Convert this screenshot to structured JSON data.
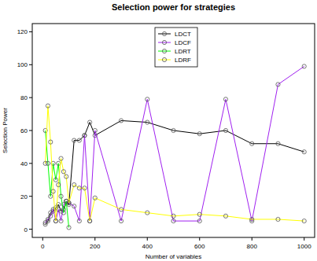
{
  "chart_data": {
    "type": "line",
    "title": "Selection power for strategies",
    "x_label": "Number of  variables",
    "y_label": "Selection Power",
    "xlim": [
      -40,
      1040
    ],
    "xticks": [
      0,
      200,
      400,
      600,
      800,
      1000
    ],
    "ylim": [
      -5,
      125
    ],
    "yticks": [
      0,
      20,
      40,
      60,
      80,
      100,
      120
    ],
    "grid": false,
    "legend": "top",
    "series": [
      {
        "name": "LDCT",
        "color": "#000000",
        "marker": "circle",
        "line_style": "solid",
        "x": [
          10,
          20,
          30,
          40,
          50,
          60,
          70,
          80,
          90,
          100,
          120,
          140,
          160,
          180,
          200,
          300,
          400,
          500,
          600,
          700,
          800,
          900,
          1000
        ],
        "values": [
          3,
          5,
          10,
          11,
          13,
          15,
          11,
          12,
          17,
          15,
          54,
          54,
          57,
          65,
          57,
          66,
          65,
          60,
          58,
          60,
          52,
          52,
          47
        ]
      },
      {
        "name": "LDCF",
        "color": "#a020f0",
        "marker": "circle",
        "line_style": "solid",
        "x": [
          10,
          20,
          30,
          40,
          50,
          60,
          70,
          80,
          90,
          100,
          120,
          140,
          160,
          180,
          200,
          300,
          400,
          500,
          600,
          700,
          800,
          900,
          1000
        ],
        "values": [
          4,
          6,
          8,
          12,
          5,
          12,
          5,
          15,
          17,
          16,
          14,
          5,
          57,
          5,
          60,
          5,
          79,
          5,
          5,
          79,
          5,
          88,
          99
        ]
      },
      {
        "name": "LDRT",
        "color": "#00ff00",
        "marker": "circle",
        "line_style": "solid",
        "x": [
          10,
          20,
          30,
          40,
          50,
          60,
          70,
          80,
          90,
          100
        ],
        "values": [
          60,
          40,
          20,
          40,
          30,
          40,
          20,
          10,
          17,
          1
        ]
      },
      {
        "name": "LDRF",
        "color": "#ffff00",
        "marker": "circle",
        "line_style": "solid",
        "x": [
          10,
          20,
          30,
          40,
          50,
          60,
          70,
          80,
          90,
          100,
          120,
          140,
          160,
          180,
          200,
          300,
          400,
          500,
          600,
          700,
          800,
          900,
          1000
        ],
        "values": [
          40,
          75,
          53,
          23,
          5,
          27,
          43,
          35,
          32,
          16,
          27,
          25,
          25,
          5,
          19,
          12,
          10,
          8,
          9,
          8,
          6,
          6,
          5
        ]
      }
    ]
  }
}
